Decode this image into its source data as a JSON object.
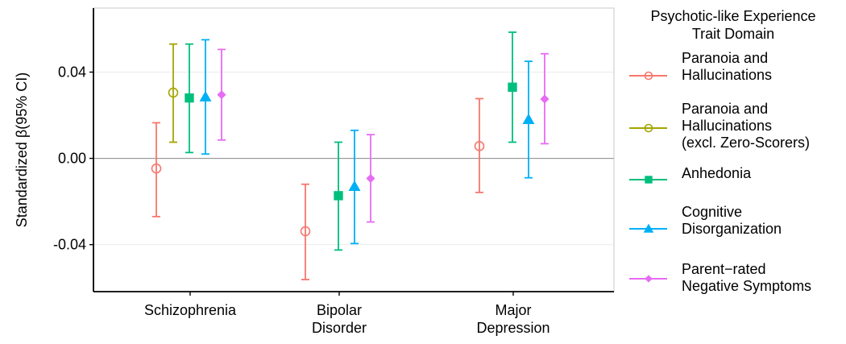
{
  "chart_data": {
    "type": "scatter",
    "title": "",
    "xlabel": "",
    "ylabel": "Standardized β(95% CI)",
    "ylim": [
      -0.0618,
      0.0697
    ],
    "yticks": [
      -0.04,
      0.0,
      0.04
    ],
    "ytick_labels": [
      "-0.04",
      "0.00",
      "0.04"
    ],
    "grid": true,
    "reference_line_y": 0.0,
    "categories": [
      {
        "lines": [
          "Schizophrenia"
        ]
      },
      {
        "lines": [
          "Bipolar",
          "Disorder"
        ]
      },
      {
        "lines": [
          "Major",
          "Depression"
        ]
      }
    ],
    "legend": {
      "title_lines": [
        "Psychotic-like Experience",
        "Trait Domain"
      ],
      "position": "right"
    },
    "series": [
      {
        "name": "Paranoia and Hallucinations",
        "label_lines": [
          "Paranoia and",
          "Hallucinations"
        ],
        "marker": "circle-open",
        "color": "#F8766D",
        "points": [
          {
            "category": 0,
            "value": -0.0047,
            "lower": -0.027,
            "upper": 0.0165
          },
          {
            "category": 1,
            "value": -0.0338,
            "lower": -0.0562,
            "upper": -0.012
          },
          {
            "category": 2,
            "value": 0.0057,
            "lower": -0.0158,
            "upper": 0.0277
          }
        ]
      },
      {
        "name": "Paranoia and Hallucinations (excl. Zero-Scorers)",
        "label_lines": [
          "Paranoia and",
          "Hallucinations",
          "(excl. Zero-Scorers)"
        ],
        "marker": "circle-open",
        "color": "#A3A500",
        "points": [
          {
            "category": 0,
            "value": 0.0305,
            "lower": 0.0075,
            "upper": 0.053
          }
        ]
      },
      {
        "name": "Anhedonia",
        "label_lines": [
          "Anhedonia"
        ],
        "marker": "square",
        "color": "#00BF7D",
        "points": [
          {
            "category": 0,
            "value": 0.028,
            "lower": 0.0027,
            "upper": 0.053
          },
          {
            "category": 1,
            "value": -0.0173,
            "lower": -0.0425,
            "upper": 0.0075
          },
          {
            "category": 2,
            "value": 0.033,
            "lower": 0.0075,
            "upper": 0.0585
          }
        ]
      },
      {
        "name": "Cognitive Disorganization",
        "label_lines": [
          "Cognitive",
          "Disorganization"
        ],
        "marker": "triangle",
        "color": "#00B0F6",
        "points": [
          {
            "category": 0,
            "value": 0.0285,
            "lower": 0.002,
            "upper": 0.055
          },
          {
            "category": 1,
            "value": -0.013,
            "lower": -0.0395,
            "upper": 0.013
          },
          {
            "category": 2,
            "value": 0.018,
            "lower": -0.009,
            "upper": 0.045
          }
        ]
      },
      {
        "name": "Parent-rated Negative Symptoms",
        "label_lines": [
          "Parent−rated",
          "Negative Symptoms"
        ],
        "marker": "diamond",
        "color": "#E76BF3",
        "points": [
          {
            "category": 0,
            "value": 0.0295,
            "lower": 0.0085,
            "upper": 0.0505
          },
          {
            "category": 1,
            "value": -0.0093,
            "lower": -0.0295,
            "upper": 0.011
          },
          {
            "category": 2,
            "value": 0.0275,
            "lower": 0.0068,
            "upper": 0.0485
          }
        ]
      }
    ]
  }
}
